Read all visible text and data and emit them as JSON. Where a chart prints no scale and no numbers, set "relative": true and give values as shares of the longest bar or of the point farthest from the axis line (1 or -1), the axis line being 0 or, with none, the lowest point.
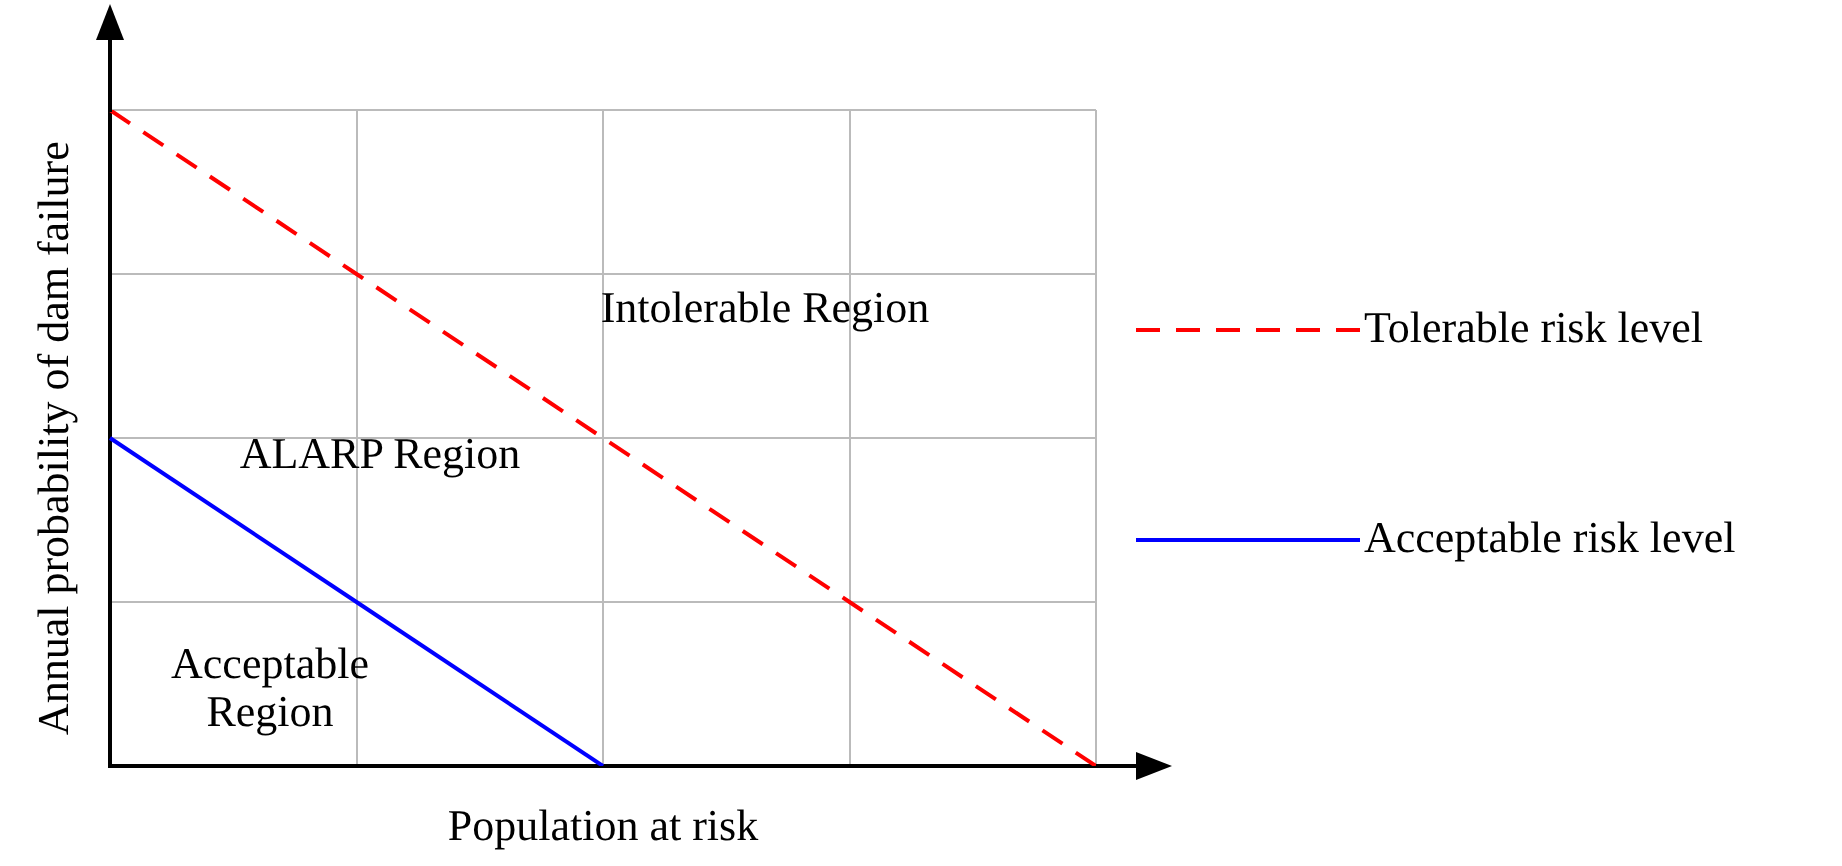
{
  "chart_data": {
    "type": "line",
    "relative": true,
    "xlabel": "Population at risk",
    "ylabel": "Annual probability of dam failure",
    "categories": [
      null,
      null,
      null,
      null,
      null
    ],
    "series": [
      {
        "name": "Tolerable risk level",
        "color": "#ff0000",
        "line_style": "dashed",
        "values": [
          1,
          0.75,
          0.5,
          0.25,
          0
        ]
      },
      {
        "name": "Acceptable risk level",
        "color": "#0000ff",
        "line_style": "solid",
        "values": [
          0.5,
          0.25,
          0,
          null,
          null
        ]
      }
    ],
    "marker": "none",
    "grid": true,
    "legend": "right",
    "annotations": [
      "Intolerable Region",
      "ALARP Region",
      "Acceptable Region"
    ]
  }
}
